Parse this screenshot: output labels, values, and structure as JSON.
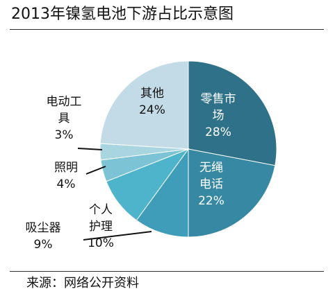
{
  "title": "2013年镍氢电池下游占比示意图",
  "source": "来源：网络公开资料",
  "chart_data": {
    "type": "pie",
    "title": "2013年镍氢电池下游占比示意图",
    "unit": "%",
    "legend": "none",
    "slices": [
      {
        "label_lines": [
          "零售市",
          "场"
        ],
        "value": 28,
        "value_label": "28%",
        "color": "#2e7188"
      },
      {
        "label_lines": [
          "无绳",
          "电话"
        ],
        "value": 22,
        "value_label": "22%",
        "color": "#3788a3"
      },
      {
        "label_lines": [
          "个人",
          "护理"
        ],
        "value": 10,
        "value_label": "10%",
        "color": "#3f9db9"
      },
      {
        "label_lines": [
          "吸尘器"
        ],
        "value": 9,
        "value_label": "9%",
        "color": "#4eb4cc"
      },
      {
        "label_lines": [
          "照明"
        ],
        "value": 4,
        "value_label": "4%",
        "color": "#7cc3d6"
      },
      {
        "label_lines": [
          "电动工",
          "具"
        ],
        "value": 3,
        "value_label": "3%",
        "color": "#a9d5e1"
      },
      {
        "label_lines": [
          "其他"
        ],
        "value": 24,
        "value_label": "24%",
        "color": "#c2dbe6"
      }
    ]
  }
}
